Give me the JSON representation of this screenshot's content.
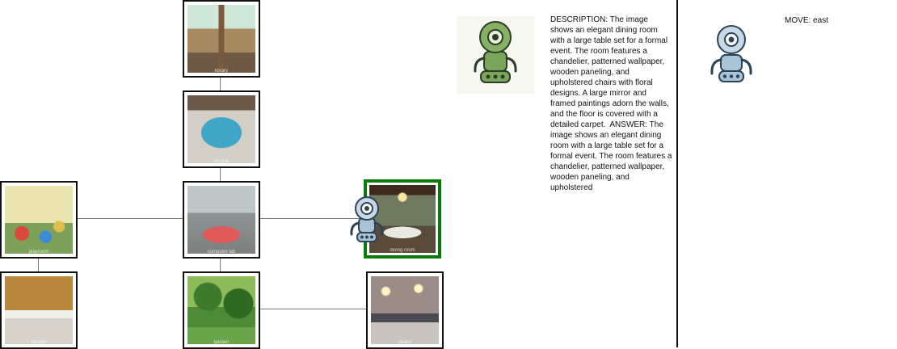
{
  "map": {
    "nodes": [
      {
        "id": "top",
        "label": "library"
      },
      {
        "id": "upper",
        "label": "hot tub"
      },
      {
        "id": "center",
        "label": "computer lab"
      },
      {
        "id": "left",
        "label": "playroom"
      },
      {
        "id": "current",
        "label": "dining room"
      },
      {
        "id": "lower-left",
        "label": "kitchen"
      },
      {
        "id": "lower-center",
        "label": "garden"
      },
      {
        "id": "lower-right",
        "label": "studio"
      }
    ],
    "current_node": "current",
    "agent_icon": "robot-icon",
    "current_border_color": "#0a7a0a"
  },
  "panel": {
    "avatar_icon": "green-robot-icon",
    "description_text": "DESCRIPTION: The image shows an elegant dining room with a large table set for a formal event. The room features a chandelier, patterned wallpaper, wooden paneling, and upholstered chairs with floral designs. A large mirror and framed paintings adorn the walls, and the floor is covered with a detailed carpet.  ANSWER: The image shows an elegant dining room with a large table set for a formal event. The room features a chandelier, patterned wallpaper, wooden paneling, and upholstered"
  },
  "action": {
    "text": "MOVE: east",
    "avatar_icon": "robot-icon"
  }
}
